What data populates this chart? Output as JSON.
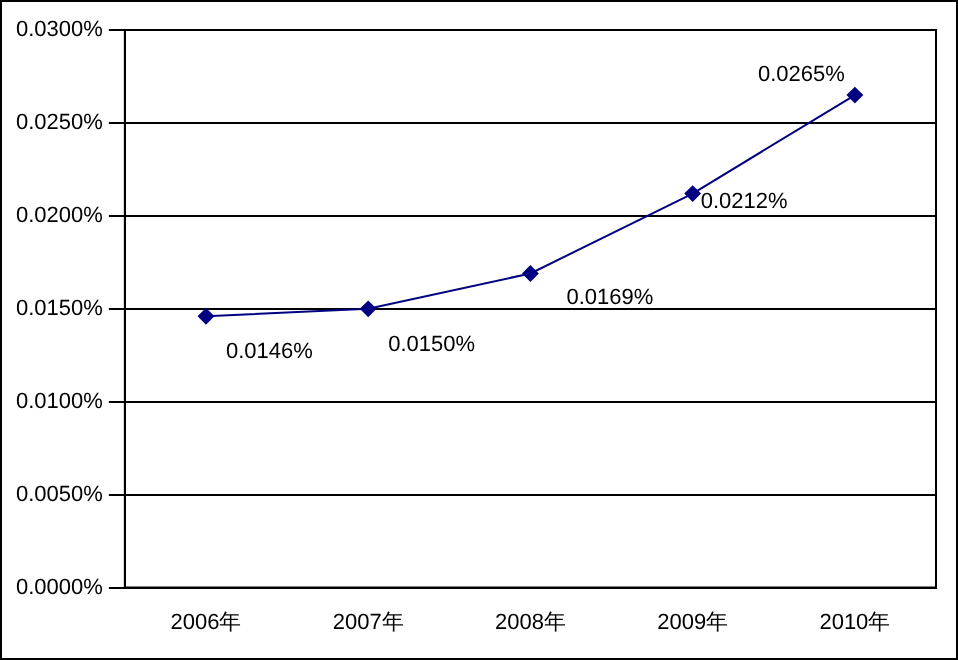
{
  "chart_data": {
    "type": "line",
    "categories": [
      "2006年",
      "2007年",
      "2008年",
      "2009年",
      "2010年"
    ],
    "series": [
      {
        "color": "#000080",
        "values": [
          0.0146,
          0.015,
          0.0169,
          0.0212,
          0.0265
        ],
        "value_labels": [
          "0.0146%",
          "0.0150%",
          "0.0169%",
          "0.0212%",
          "0.0265%"
        ]
      }
    ],
    "ylim": [
      0,
      0.03
    ],
    "yticks": [
      {
        "value": 0,
        "label": "0.0000%"
      },
      {
        "value": 0.005,
        "label": "0.0050%"
      },
      {
        "value": 0.01,
        "label": "0.0100%"
      },
      {
        "value": 0.015,
        "label": "0.0150%"
      },
      {
        "value": 0.02,
        "label": "0.0200%"
      },
      {
        "value": 0.025,
        "label": "0.0250%"
      },
      {
        "value": 0.03,
        "label": "0.0300%"
      }
    ],
    "grid": "y",
    "legend": false,
    "marker": "diamond",
    "line_style": "solid"
  }
}
